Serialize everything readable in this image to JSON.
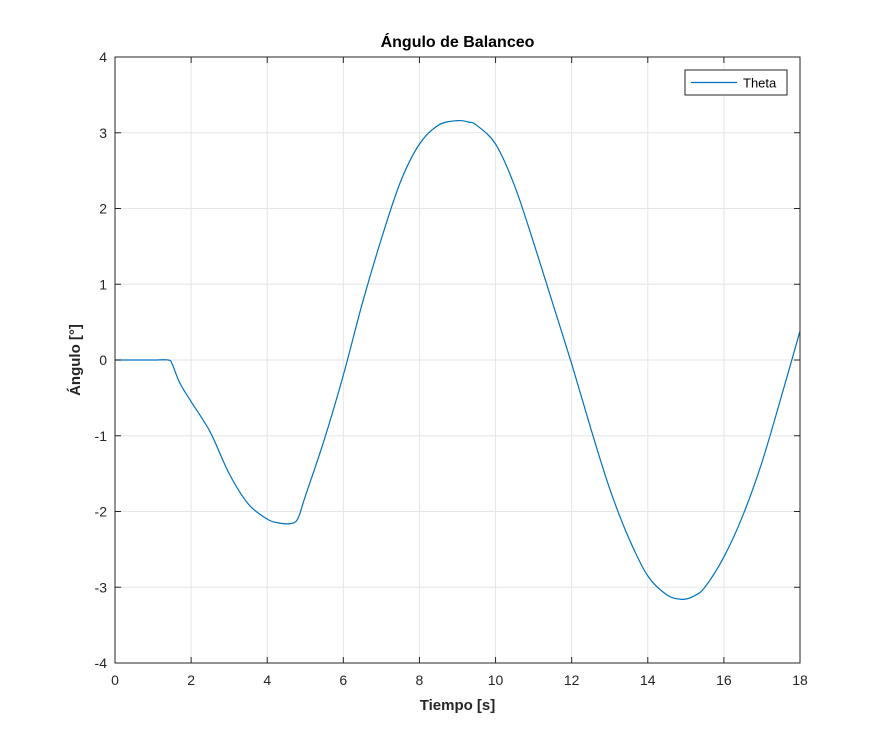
{
  "chart_data": {
    "type": "line",
    "title": "Ángulo de Balanceo",
    "xlabel": "Tiempo [s]",
    "ylabel": "Ángulo [°]",
    "xlim": [
      0,
      18
    ],
    "ylim": [
      -4,
      4
    ],
    "xticks": [
      0,
      2,
      4,
      6,
      8,
      10,
      12,
      14,
      16,
      18
    ],
    "yticks": [
      -4,
      -3,
      -2,
      -1,
      0,
      1,
      2,
      3,
      4
    ],
    "xtick_labels": [
      "0",
      "2",
      "4",
      "6",
      "8",
      "10",
      "12",
      "14",
      "16",
      "18"
    ],
    "ytick_labels": [
      "-4",
      "-3",
      "-2",
      "-1",
      "0",
      "1",
      "2",
      "3",
      "4"
    ],
    "grid": true,
    "legend_position": "top-right",
    "colors": {
      "line": "#0072BD",
      "grid": "#e6e6e6",
      "axes": "#262626"
    },
    "series": [
      {
        "name": "Theta",
        "x": [
          0,
          0.5,
          1.0,
          1.4,
          1.5,
          1.7,
          2.0,
          2.5,
          3.0,
          3.5,
          4.0,
          4.3,
          4.6,
          4.8,
          5.0,
          5.5,
          6.0,
          6.5,
          7.0,
          7.5,
          8.0,
          8.5,
          9.0,
          9.3,
          9.5,
          10.0,
          10.5,
          11.0,
          11.5,
          12.0,
          12.5,
          13.0,
          13.5,
          14.0,
          14.5,
          14.9,
          15.2,
          15.5,
          16.0,
          16.5,
          17.0,
          17.5,
          18.0
        ],
        "y": [
          0,
          0,
          0,
          0,
          -0.05,
          -0.3,
          -0.55,
          -0.95,
          -1.5,
          -1.9,
          -2.1,
          -2.15,
          -2.16,
          -2.1,
          -1.8,
          -1.05,
          -0.2,
          0.75,
          1.6,
          2.35,
          2.85,
          3.1,
          3.16,
          3.14,
          3.1,
          2.85,
          2.3,
          1.55,
          0.75,
          -0.05,
          -0.9,
          -1.7,
          -2.35,
          -2.85,
          -3.1,
          -3.16,
          -3.12,
          -3.0,
          -2.6,
          -2.05,
          -1.35,
          -0.5,
          0.38
        ]
      }
    ]
  }
}
